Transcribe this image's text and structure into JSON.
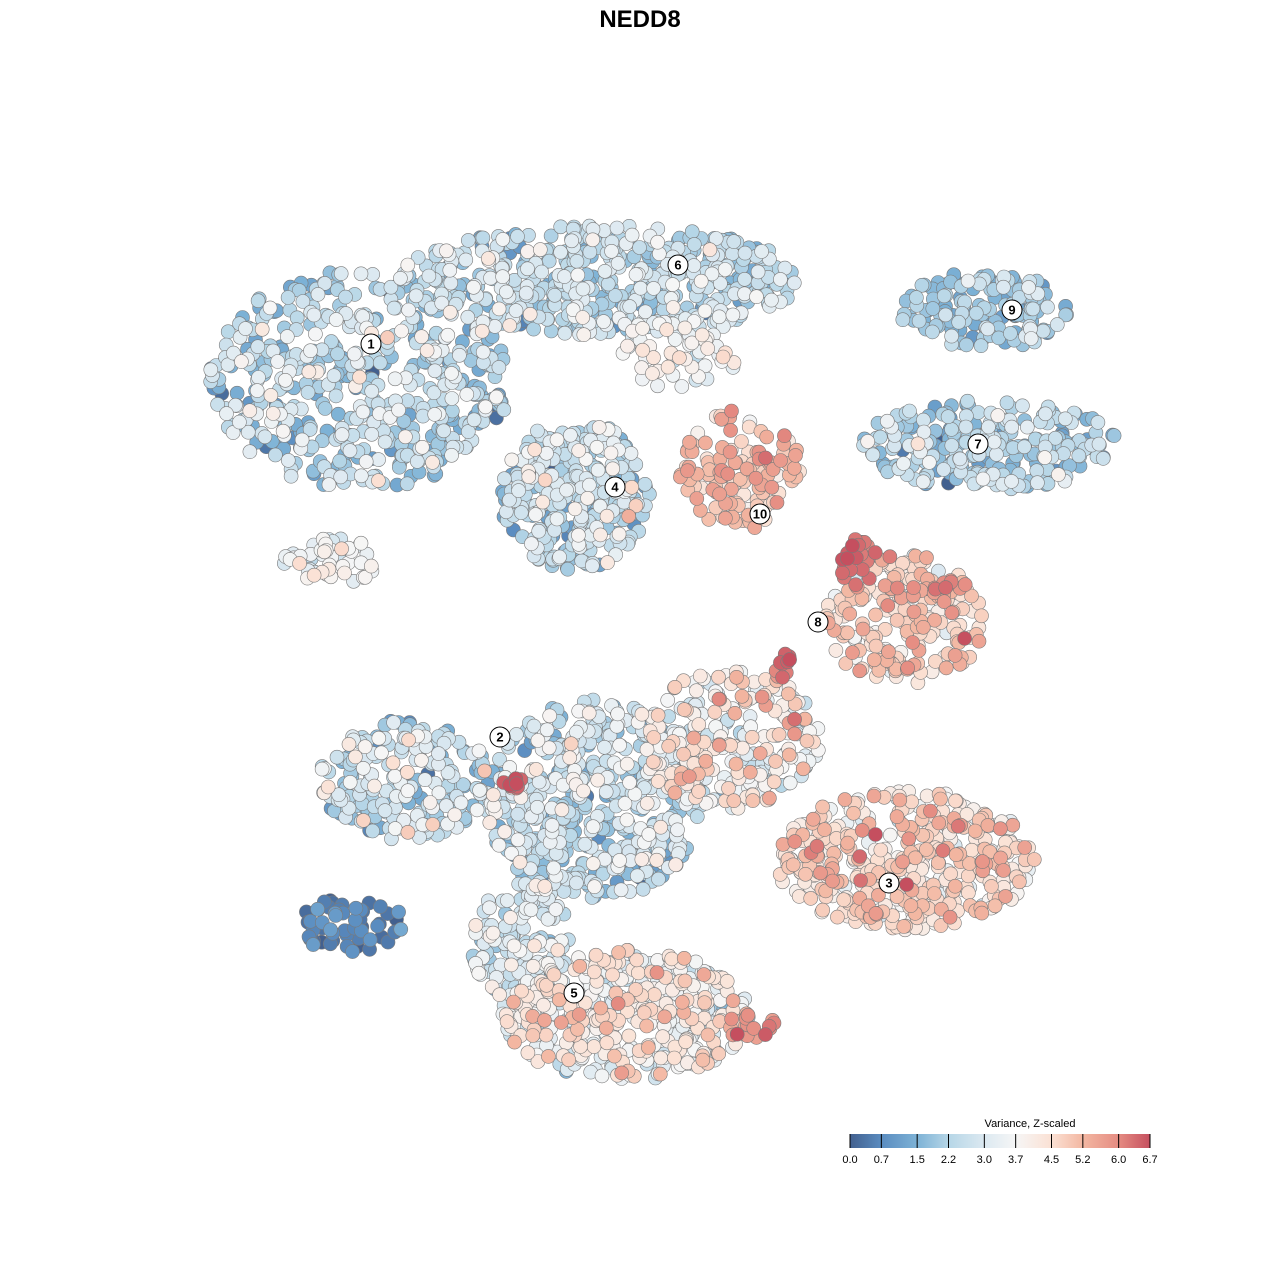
{
  "chart_data": {
    "type": "scatter",
    "title": "NEDD8",
    "xlabel": "",
    "ylabel": "",
    "grid": false,
    "axes_visible": false,
    "legend": {
      "title": "Variance, Z-scaled",
      "placement": "bottom-right",
      "ticks": [
        "0.0",
        "0.7",
        "1.5",
        "2.2",
        "3.0",
        "3.7",
        "4.5",
        "5.2",
        "6.0",
        "6.7"
      ],
      "range": [
        0,
        6.7
      ]
    },
    "color_scale": {
      "stops": [
        0,
        0.7,
        1.5,
        2.2,
        3.0,
        3.7,
        4.5,
        5.2,
        6.0,
        6.7
      ],
      "colors": [
        "#42608f",
        "#5a8cc0",
        "#7db2d6",
        "#b6d6e7",
        "#dce9f1",
        "#f6f6f6",
        "#fbe1d4",
        "#f3b7a2",
        "#e58c82",
        "#c54f5f"
      ]
    },
    "clusters": [
      {
        "label": "1",
        "x": -26.9,
        "y": 29.6
      },
      {
        "label": "2",
        "x": -14.0,
        "y": -9.7
      },
      {
        "label": "3",
        "x": 24.9,
        "y": -24.3
      },
      {
        "label": "4",
        "x": -2.5,
        "y": 15.3
      },
      {
        "label": "5",
        "x": -6.6,
        "y": -35.3
      },
      {
        "label": "6",
        "x": 3.8,
        "y": 37.5
      },
      {
        "label": "7",
        "x": 33.8,
        "y": 19.6
      },
      {
        "label": "8",
        "x": 17.8,
        "y": 1.8
      },
      {
        "label": "9",
        "x": 37.2,
        "y": 33.0
      },
      {
        "label": "10",
        "x": 12.0,
        "y": 12.6
      }
    ]
  }
}
